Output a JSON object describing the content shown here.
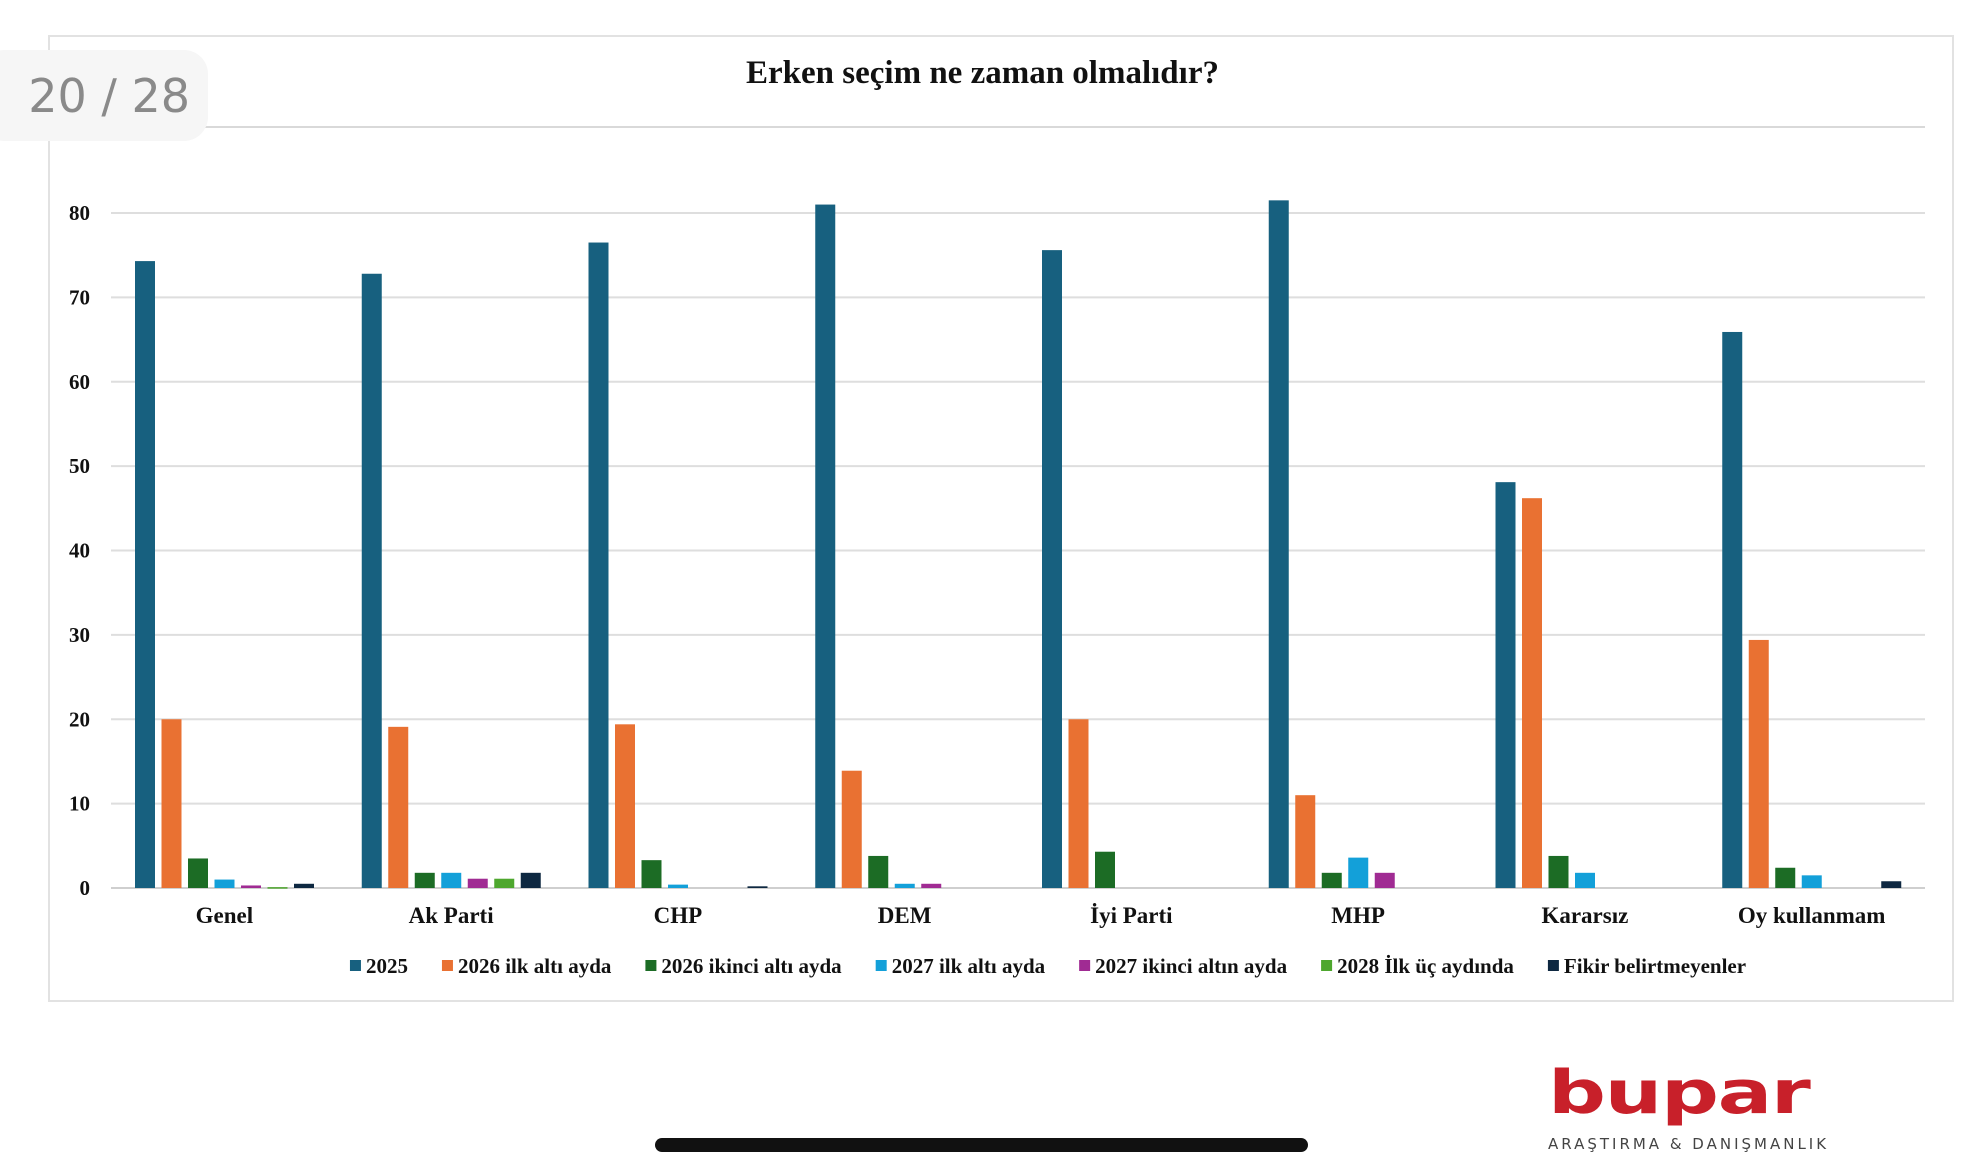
{
  "viewer": {
    "page_counter": "20 / 28"
  },
  "logo": {
    "name": "bupar",
    "tagline": "ARAŞTIRMA & DANIŞMANLIK"
  },
  "chart_data": {
    "type": "bar",
    "title": "Erken seçim ne zaman olmalıdır?",
    "xlabel": "",
    "ylabel": "",
    "ylim": [
      0,
      80
    ],
    "yticks": [
      0,
      10,
      20,
      30,
      40,
      50,
      60,
      70,
      80
    ],
    "grid": true,
    "legend_position": "bottom",
    "categories": [
      "Genel",
      "Ak Parti",
      "CHP",
      "DEM",
      "İyi Parti",
      "MHP",
      "Kararsız",
      "Oy kullanmam"
    ],
    "series": [
      {
        "name": "2025",
        "color": "#17607F",
        "values": [
          74.3,
          72.8,
          76.5,
          81.0,
          75.6,
          81.5,
          48.1,
          65.9
        ]
      },
      {
        "name": "2026 ilk altı ayda",
        "color": "#E97132",
        "values": [
          20.0,
          19.1,
          19.4,
          13.9,
          20.0,
          11.0,
          46.2,
          29.4
        ]
      },
      {
        "name": "2026 ikinci altı ayda",
        "color": "#1C6C25",
        "values": [
          3.5,
          1.8,
          3.3,
          3.8,
          4.3,
          1.8,
          3.8,
          2.4
        ]
      },
      {
        "name": "2027 ilk altı ayda",
        "color": "#13A0D9",
        "values": [
          1.0,
          1.8,
          0.4,
          0.5,
          0,
          3.6,
          1.8,
          1.5
        ]
      },
      {
        "name": "2027 ikinci altın ayda",
        "color": "#A02B93",
        "values": [
          0.3,
          1.1,
          0,
          0.5,
          0,
          1.8,
          0,
          0
        ]
      },
      {
        "name": "2028 İlk üç aydında",
        "color": "#4EA72E",
        "values": [
          0.1,
          1.1,
          0,
          0,
          0,
          0,
          0,
          0
        ]
      },
      {
        "name": "Fikir belirtmeyenler",
        "color": "#0E2841",
        "values": [
          0.5,
          1.8,
          0.2,
          0,
          0,
          0,
          0,
          0.8
        ]
      }
    ]
  }
}
